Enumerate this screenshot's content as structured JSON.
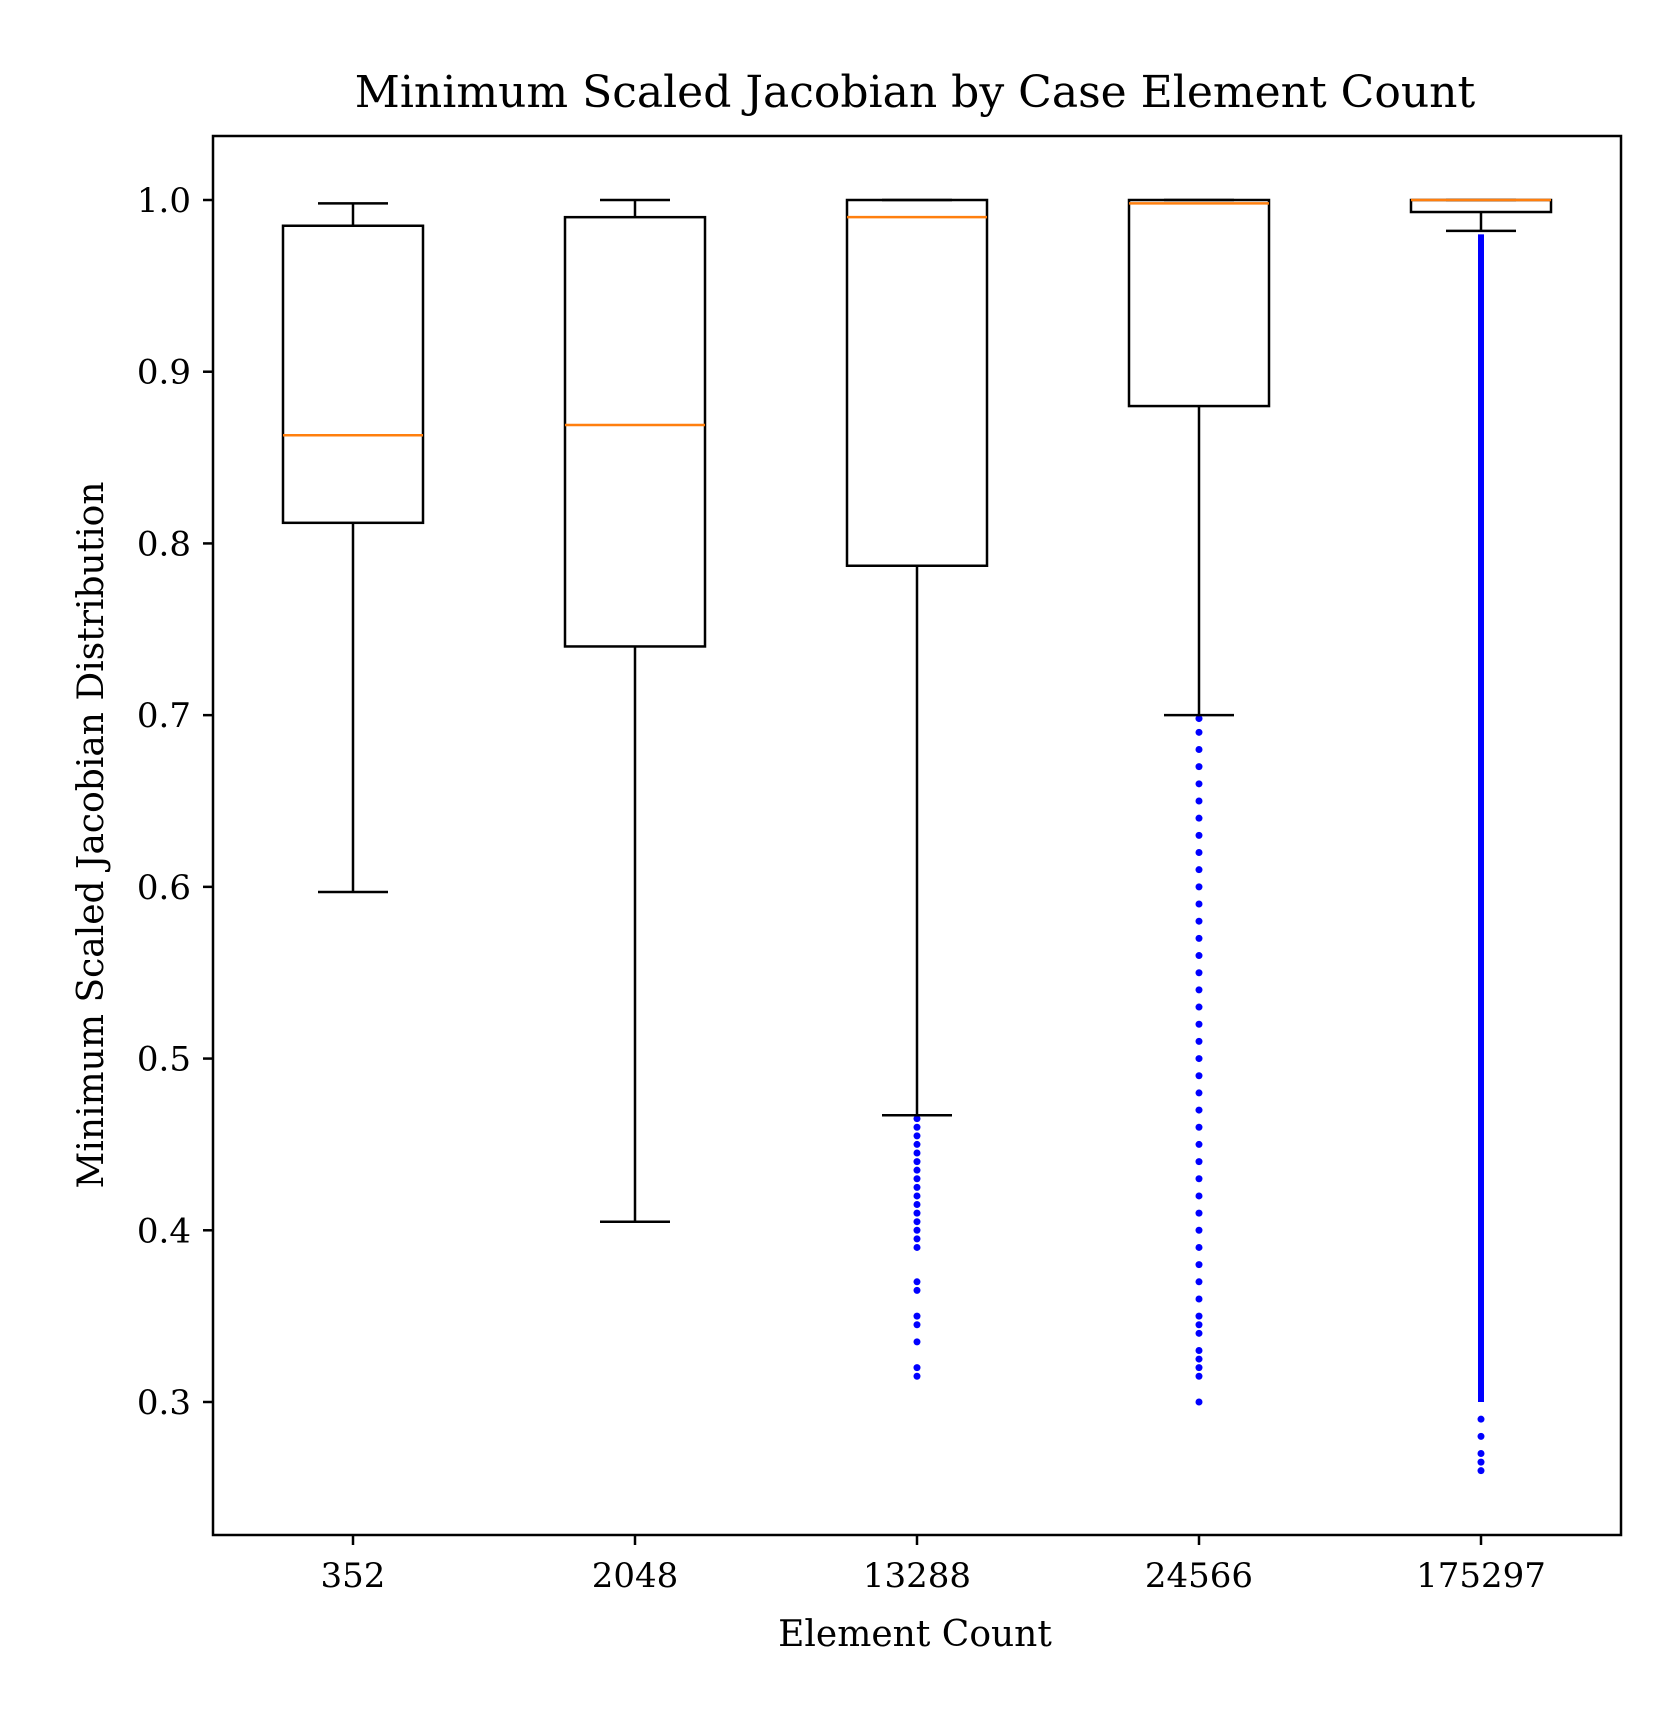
{
  "chart_data": {
    "type": "box",
    "title": "Minimum Scaled Jacobian by Case Element Count",
    "xlabel": "Element Count",
    "ylabel": "Minimum Scaled Jacobian Distribution",
    "ylim": [
      0.222,
      1.037
    ],
    "yticks": [
      "0.3",
      "0.4",
      "0.5",
      "0.6",
      "0.7",
      "0.8",
      "0.9",
      "1.0"
    ],
    "grid": false,
    "colors": {
      "box": "#000000",
      "median": "#ff7f0e",
      "outlier": "#0000ff"
    },
    "categories": [
      "352",
      "2048",
      "13288",
      "24566",
      "175297"
    ],
    "boxes": [
      {
        "category": "352",
        "whisker_low": 0.597,
        "q1": 0.812,
        "median": 0.863,
        "q3": 0.985,
        "whisker_high": 0.998,
        "outliers": []
      },
      {
        "category": "2048",
        "whisker_low": 0.405,
        "q1": 0.74,
        "median": 0.869,
        "q3": 0.99,
        "whisker_high": 1.0,
        "outliers": []
      },
      {
        "category": "13288",
        "whisker_low": 0.467,
        "q1": 0.787,
        "median": 0.99,
        "q3": 1.0,
        "whisker_high": 1.0,
        "outliers": [
          0.465,
          0.46,
          0.455,
          0.45,
          0.445,
          0.44,
          0.435,
          0.43,
          0.425,
          0.42,
          0.415,
          0.41,
          0.405,
          0.4,
          0.395,
          0.39,
          0.37,
          0.365,
          0.35,
          0.345,
          0.335,
          0.32,
          0.315
        ]
      },
      {
        "category": "24566",
        "whisker_low": 0.7,
        "q1": 0.88,
        "median": 0.998,
        "q3": 1.0,
        "whisker_high": 1.0,
        "outliers": [
          0.698,
          0.69,
          0.68,
          0.67,
          0.66,
          0.65,
          0.64,
          0.63,
          0.62,
          0.61,
          0.6,
          0.59,
          0.58,
          0.57,
          0.56,
          0.55,
          0.54,
          0.53,
          0.52,
          0.51,
          0.5,
          0.49,
          0.48,
          0.47,
          0.46,
          0.45,
          0.44,
          0.43,
          0.42,
          0.41,
          0.4,
          0.39,
          0.38,
          0.37,
          0.36,
          0.35,
          0.345,
          0.34,
          0.33,
          0.325,
          0.32,
          0.315,
          0.3
        ]
      },
      {
        "category": "175297",
        "whisker_low": 0.982,
        "q1": 0.993,
        "median": 1.0,
        "q3": 1.0,
        "whisker_high": 1.0,
        "outliers_range": [
          0.3,
          0.98
        ],
        "outliers": [
          0.29,
          0.28,
          0.27,
          0.265,
          0.26
        ]
      }
    ]
  }
}
